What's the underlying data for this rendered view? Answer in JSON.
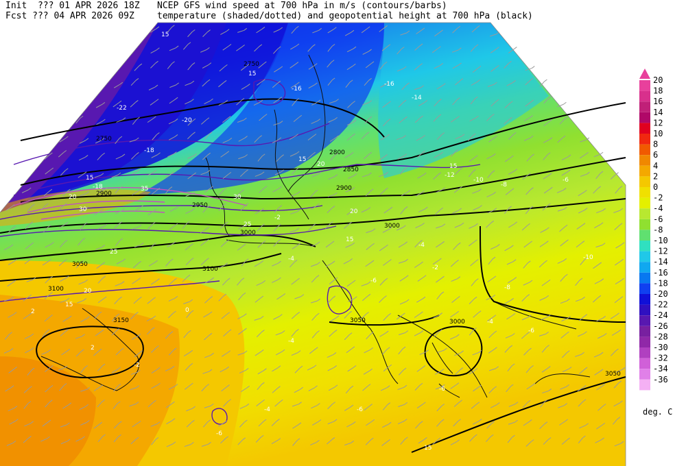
{
  "header": {
    "line1_left": "Init  ??? 01 APR 2026 18Z",
    "line1_right": "NCEP GFS wind speed at 700 hPa in m/s (contours/barbs)",
    "line2_left": "Fcst ??? 04 APR 2026 09Z",
    "line2_right": "temperature (shaded/dotted) and geopotential height at 700 hPa (black)"
  },
  "colorbar": {
    "unit": "deg. C",
    "levels": [
      "20",
      "18",
      "16",
      "14",
      "12",
      "10",
      "8",
      "6",
      "4",
      "2",
      "0",
      "-2",
      "-4",
      "-6",
      "-8",
      "-10",
      "-12",
      "-14",
      "-16",
      "-18",
      "-20",
      "-22",
      "-24",
      "-26",
      "-28",
      "-30",
      "-32",
      "-34",
      "-36"
    ],
    "colors": [
      "#e8409c",
      "#d8308c",
      "#c02078",
      "#b00868",
      "#e00020",
      "#f02810",
      "#f05a00",
      "#f08800",
      "#f4a800",
      "#f4c800",
      "#f0e000",
      "#e4f000",
      "#b8e830",
      "#90e030",
      "#60e070",
      "#30e0c0",
      "#20c8e8",
      "#10a8f0",
      "#0878f0",
      "#1040f0",
      "#1010d8",
      "#3010c0",
      "#5818b0",
      "#7820a0",
      "#9028a8",
      "#b040c0",
      "#d060d8",
      "#e080e8",
      "#f4b0f4"
    ]
  },
  "map_labels": {
    "height": [
      "2750",
      "2750",
      "2800",
      "2850",
      "2900",
      "2900",
      "2950",
      "3000",
      "3000",
      "3050",
      "3100",
      "3100",
      "3150",
      "3050",
      "3000",
      "3050"
    ],
    "temp": [
      "-22",
      "-20",
      "-18",
      "-18",
      "-16",
      "-16",
      "-14",
      "-12",
      "-10",
      "-10",
      "-8",
      "-6",
      "-6",
      "-4",
      "-2",
      "-4",
      "-6",
      "-8",
      "-6",
      "-4",
      "-2",
      "0",
      "2",
      "2",
      "-4",
      "-2",
      "-6",
      "-6",
      "-4"
    ],
    "wind": [
      "15",
      "15",
      "15",
      "20",
      "25",
      "30",
      "35",
      "30",
      "15",
      "20",
      "25",
      "20",
      "15",
      "15",
      "15",
      "20",
      "15"
    ]
  }
}
